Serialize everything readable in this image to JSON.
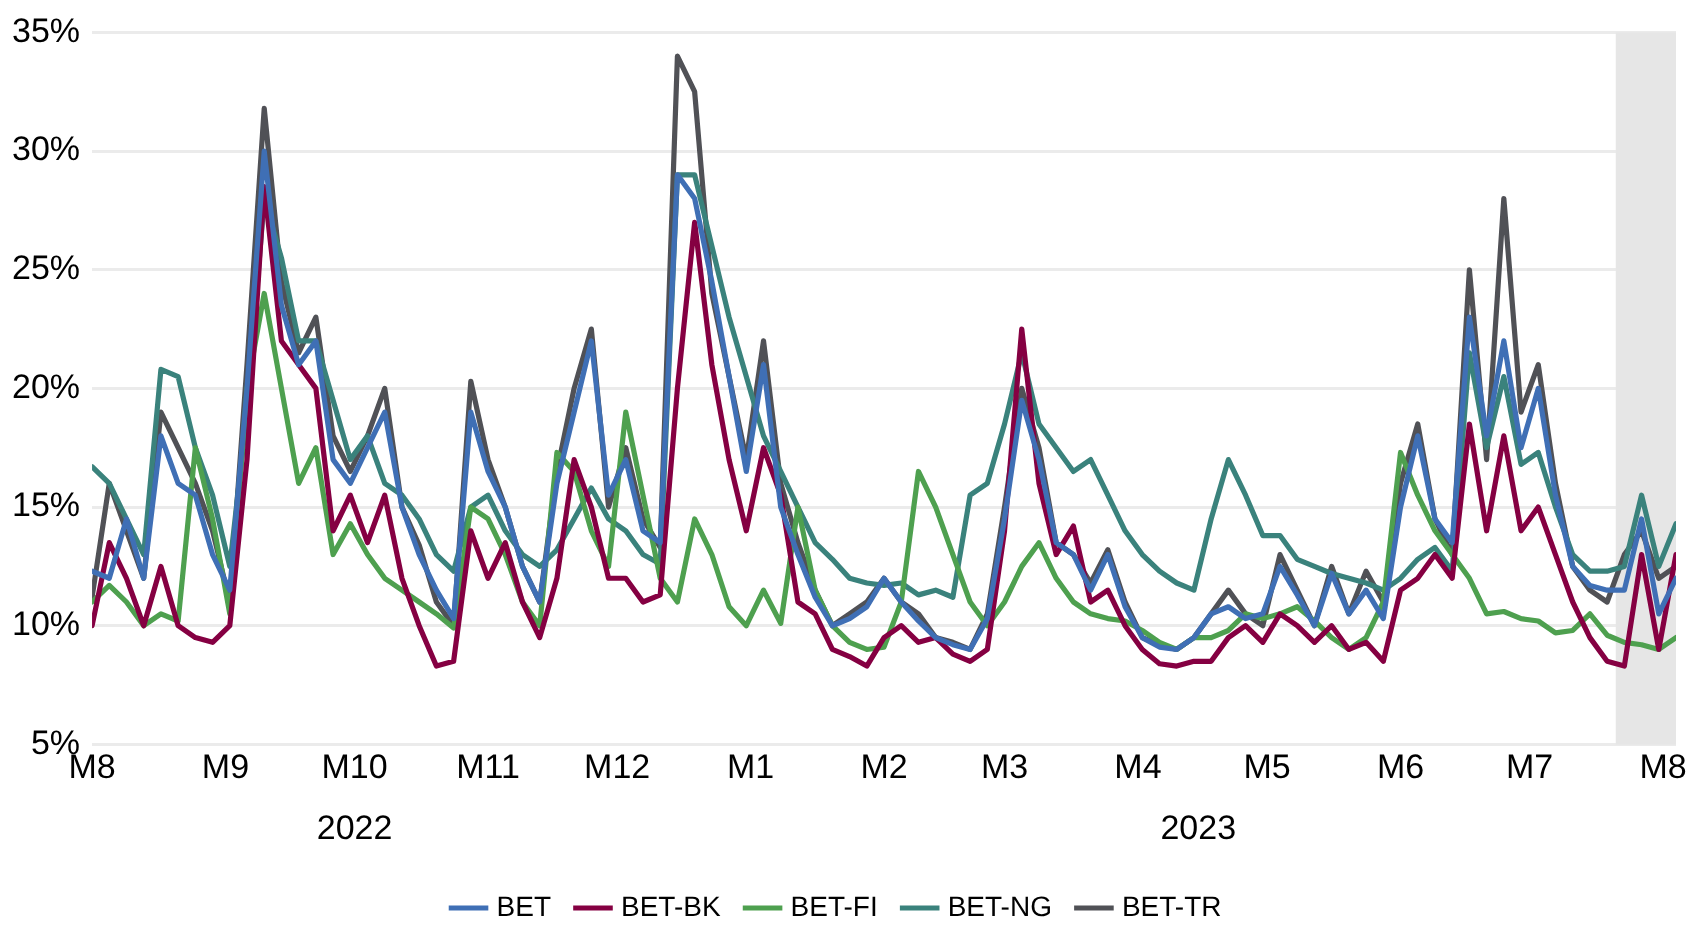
{
  "chart_data": {
    "type": "line",
    "x": [
      "2022-08-01",
      "2022-08-05",
      "2022-08-09",
      "2022-08-13",
      "2022-08-17",
      "2022-08-21",
      "2022-08-25",
      "2022-08-29",
      "2022-09-02",
      "2022-09-06",
      "2022-09-10",
      "2022-09-14",
      "2022-09-18",
      "2022-09-22",
      "2022-09-26",
      "2022-09-30",
      "2022-10-04",
      "2022-10-08",
      "2022-10-12",
      "2022-10-16",
      "2022-10-20",
      "2022-10-24",
      "2022-10-28",
      "2022-11-01",
      "2022-11-05",
      "2022-11-09",
      "2022-11-13",
      "2022-11-17",
      "2022-11-21",
      "2022-11-25",
      "2022-11-29",
      "2022-12-03",
      "2022-12-07",
      "2022-12-11",
      "2022-12-15",
      "2022-12-19",
      "2022-12-23",
      "2022-12-27",
      "2022-12-31",
      "2023-01-04",
      "2023-01-08",
      "2023-01-12",
      "2023-01-16",
      "2023-01-20",
      "2023-01-24",
      "2023-01-28",
      "2023-02-01",
      "2023-02-05",
      "2023-02-09",
      "2023-02-13",
      "2023-02-17",
      "2023-02-21",
      "2023-02-25",
      "2023-03-01",
      "2023-03-05",
      "2023-03-09",
      "2023-03-13",
      "2023-03-17",
      "2023-03-21",
      "2023-03-25",
      "2023-03-29",
      "2023-04-02",
      "2023-04-06",
      "2023-04-10",
      "2023-04-14",
      "2023-04-18",
      "2023-04-22",
      "2023-04-26",
      "2023-04-30",
      "2023-05-04",
      "2023-05-08",
      "2023-05-12",
      "2023-05-16",
      "2023-05-20",
      "2023-05-24",
      "2023-05-28",
      "2023-06-01",
      "2023-06-05",
      "2023-06-09",
      "2023-06-13",
      "2023-06-17",
      "2023-06-21",
      "2023-06-25",
      "2023-06-29",
      "2023-07-03",
      "2023-07-07",
      "2023-07-11",
      "2023-07-15",
      "2023-07-19",
      "2023-07-23",
      "2023-07-27",
      "2023-07-31",
      "2023-08-04"
    ],
    "series": [
      {
        "name": "BET",
        "color": "#3f6fb5",
        "values": [
          12.3,
          12.0,
          14.5,
          12,
          18,
          16,
          15.5,
          13,
          11.5,
          20,
          30,
          23.5,
          21,
          22,
          17,
          16,
          17.5,
          19,
          15,
          13,
          11.5,
          10.3,
          19,
          16.5,
          15,
          12.5,
          11,
          16,
          19,
          22,
          15.5,
          17,
          14,
          13.5,
          29,
          28,
          24.5,
          20.5,
          16.5,
          21,
          15,
          13,
          11.2,
          10,
          10.3,
          10.8,
          12,
          11,
          10.2,
          9.5,
          9.2,
          9.0,
          10.3,
          14.5,
          19.5,
          17,
          13.5,
          13,
          11.5,
          13,
          10.8,
          9.5,
          9.1,
          9.0,
          9.5,
          10.5,
          10.8,
          10.3,
          10.5,
          12.5,
          11.3,
          10,
          12.2,
          10.5,
          11.5,
          10.3,
          15,
          18,
          14.5,
          13.5,
          23,
          18,
          22,
          17.5,
          20,
          15.5,
          12.5,
          11.7,
          11.5,
          11.5,
          14.5,
          10.5,
          12
        ]
      },
      {
        "name": "BET-BK",
        "color": "#850042",
        "values": [
          10.0,
          13.5,
          12.0,
          10.0,
          12.5,
          10.0,
          9.5,
          9.3,
          10.0,
          17,
          28.5,
          22,
          21,
          20,
          14,
          15.5,
          13.5,
          15.5,
          12,
          10,
          8.3,
          8.5,
          14,
          12,
          13.5,
          11,
          9.5,
          12,
          17,
          15,
          12,
          12,
          11,
          11.3,
          20,
          27,
          21,
          17,
          14,
          17.5,
          15.5,
          11,
          10.5,
          9,
          8.7,
          8.3,
          9.5,
          10,
          9.3,
          9.5,
          8.8,
          8.5,
          9,
          14,
          22.5,
          16,
          13,
          14.2,
          11,
          11.5,
          10,
          9,
          8.4,
          8.3,
          8.5,
          8.5,
          9.5,
          10,
          9.3,
          10.5,
          10,
          9.3,
          10,
          9,
          9.3,
          8.5,
          11.5,
          12,
          13,
          12,
          18.5,
          14,
          18,
          14,
          15,
          13,
          11,
          9.5,
          8.5,
          8.3,
          13,
          9,
          13
        ]
      },
      {
        "name": "BET-FI",
        "color": "#4ea04f",
        "values": [
          11.0,
          11.7,
          11.0,
          10.0,
          10.5,
          10.2,
          17.5,
          14.5,
          10.5,
          20,
          24,
          20,
          16,
          17.5,
          13,
          14.3,
          13,
          12,
          11.5,
          11,
          10.5,
          9.9,
          15,
          14.5,
          13,
          11,
          10,
          17.3,
          16.5,
          14,
          12.5,
          19,
          15.5,
          12,
          11,
          14.5,
          13,
          10.8,
          10,
          11.5,
          10.1,
          15,
          11.5,
          10,
          9.3,
          9,
          9.1,
          11,
          16.5,
          15,
          13,
          11,
          10,
          11,
          12.5,
          13.5,
          12,
          11,
          10.5,
          10.3,
          10.2,
          9.8,
          9.3,
          9.0,
          9.5,
          9.5,
          9.8,
          10.5,
          10.3,
          10.5,
          10.8,
          10.2,
          9.5,
          9,
          9.5,
          11,
          17.3,
          15.5,
          14,
          13,
          12,
          10.5,
          10.6,
          10.3,
          10.2,
          9.7,
          9.8,
          10.5,
          9.6,
          9.3,
          9.2,
          9.0,
          9.5
        ]
      },
      {
        "name": "BET-NG",
        "color": "#3a827c",
        "values": [
          16.7,
          16,
          14.5,
          13,
          20.8,
          20.5,
          17.5,
          15.5,
          12.5,
          19,
          28,
          25.5,
          22,
          22,
          19.5,
          17,
          18,
          16,
          15.5,
          14.5,
          13,
          12.3,
          15,
          15.5,
          14,
          13,
          12.5,
          13.2,
          14.5,
          15.8,
          14.5,
          14,
          13,
          12.6,
          29,
          29,
          26,
          23,
          20.5,
          18,
          16.5,
          15,
          13.5,
          12.8,
          12,
          11.8,
          11.7,
          11.8,
          11.3,
          11.5,
          11.2,
          15.5,
          16,
          18.5,
          21.5,
          18.5,
          17.5,
          16.5,
          17,
          15.5,
          14,
          13,
          12.3,
          11.8,
          11.5,
          14.5,
          17,
          15.5,
          13.8,
          13.8,
          12.8,
          12.5,
          12.2,
          12,
          11.8,
          11.5,
          12,
          12.8,
          13.3,
          12.3,
          21.5,
          17.5,
          20.5,
          16.8,
          17.3,
          15,
          13,
          12.3,
          12.3,
          12.5,
          15.5,
          12.5,
          14.3
        ]
      },
      {
        "name": "BET-TR",
        "color": "#505156",
        "values": [
          11.2,
          16,
          14,
          12,
          19,
          17.5,
          16,
          14,
          11,
          21,
          31.8,
          24.5,
          21.5,
          23,
          18,
          16.5,
          18,
          20,
          15,
          13.4,
          11,
          10,
          20.3,
          17,
          15,
          12.5,
          11,
          16.5,
          20,
          22.5,
          15,
          17.5,
          14.5,
          13.3,
          34,
          32.5,
          24,
          20.5,
          17,
          22,
          16,
          13.5,
          11.5,
          10,
          10.5,
          11,
          12,
          11,
          10.5,
          9.5,
          9.3,
          9.0,
          10.5,
          15,
          20,
          17.5,
          13.5,
          13,
          11.8,
          13.2,
          11,
          9.5,
          9.2,
          9.0,
          9.5,
          10.5,
          11.5,
          10.5,
          10,
          13,
          11.5,
          10,
          12.5,
          10.5,
          12.3,
          11,
          16,
          18.5,
          14.5,
          13,
          25,
          17,
          28,
          19,
          21,
          16,
          12.5,
          11.5,
          11,
          13,
          14,
          12,
          12.5
        ]
      }
    ],
    "xlim": [
      "2022-08-01",
      "2023-08-04"
    ],
    "xticks": [
      {
        "value": "2022-08-01",
        "label": "M8"
      },
      {
        "value": "2022-09-01",
        "label": "M9"
      },
      {
        "value": "2022-10-01",
        "label": "M10"
      },
      {
        "value": "2022-11-01",
        "label": "M11"
      },
      {
        "value": "2022-12-01",
        "label": "M12"
      },
      {
        "value": "2023-01-01",
        "label": "M1"
      },
      {
        "value": "2023-02-01",
        "label": "M2"
      },
      {
        "value": "2023-03-01",
        "label": "M3"
      },
      {
        "value": "2023-04-01",
        "label": "M4"
      },
      {
        "value": "2023-05-01",
        "label": "M5"
      },
      {
        "value": "2023-06-01",
        "label": "M6"
      },
      {
        "value": "2023-07-01",
        "label": "M7"
      },
      {
        "value": "2023-08-01",
        "label": "M8"
      }
    ],
    "x2lim": [
      "2022-08-01",
      "2023-08-04"
    ],
    "x2ticks": [
      {
        "value": "2022-10-01",
        "label": "2022"
      },
      {
        "value": "2023-04-15",
        "label": "2023"
      }
    ],
    "ylim": [
      5,
      35
    ],
    "yticks": [
      {
        "value": 5,
        "label": "5%"
      },
      {
        "value": 10,
        "label": "10%"
      },
      {
        "value": 15,
        "label": "15%"
      },
      {
        "value": 20,
        "label": "20%"
      },
      {
        "value": 25,
        "label": "25%"
      },
      {
        "value": 30,
        "label": "30%"
      },
      {
        "value": 35,
        "label": "35%"
      }
    ],
    "bands": [
      {
        "axis": "x",
        "from": "2023-07-21",
        "to": "2023-08-04",
        "color": "#e6e6e6"
      }
    ],
    "grid": "y",
    "legend": "bottom"
  }
}
